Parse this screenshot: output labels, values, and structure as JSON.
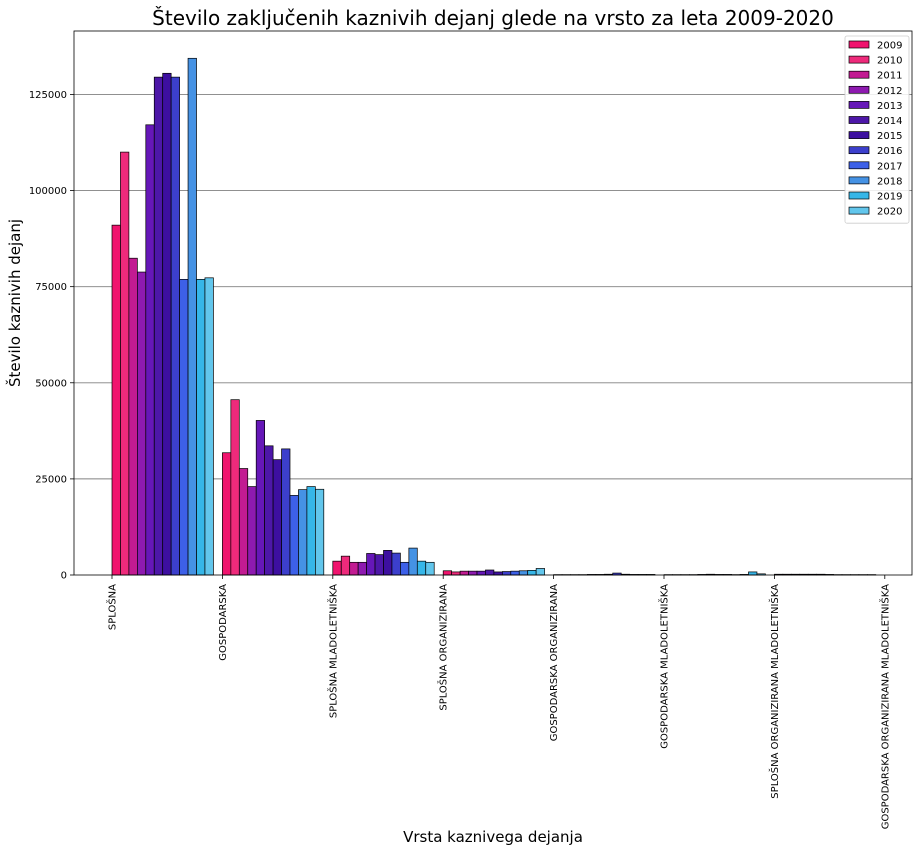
{
  "chart_data": {
    "type": "bar",
    "title": "Število zaključenih kaznivih dejanj glede na vrsto za leta 2009-2020",
    "xlabel": "Vrsta kaznivega dejanja",
    "ylabel": "Število kaznivih dejanj",
    "ylim": [
      0,
      141500
    ],
    "yticks": [
      0,
      25000,
      50000,
      75000,
      100000,
      125000
    ],
    "grid": "horizontal",
    "legend_position": "top-right",
    "categories": [
      "SPLOŠNA",
      "GOSPODARSKA",
      "SPLOŠNA MLADOLETNIŠKA",
      "SPLOŠNA ORGANIZIRANA",
      "GOSPODARSKA ORGANIZIRANA",
      "GOSPODARSKA MLADOLETNIŠKA",
      "SPLOŠNA ORGANIZIRANA MLADOLETNIŠKA",
      "GOSPODARSKA ORGANIZIRANA MLADOLETNIŠKA"
    ],
    "series": [
      {
        "name": "2009",
        "color": "#f0146e",
        "values": [
          91000,
          31800,
          3600,
          1100,
          100,
          100,
          200,
          0
        ]
      },
      {
        "name": "2010",
        "color": "#ee2a7b",
        "values": [
          110000,
          45600,
          4900,
          800,
          100,
          100,
          200,
          0
        ]
      },
      {
        "name": "2011",
        "color": "#c21b92",
        "values": [
          82400,
          27700,
          3300,
          1000,
          100,
          100,
          200,
          0
        ]
      },
      {
        "name": "2012",
        "color": "#8e1ab0",
        "values": [
          78800,
          23000,
          3300,
          1000,
          100,
          100,
          200,
          0
        ]
      },
      {
        "name": "2013",
        "color": "#6617b8",
        "values": [
          117100,
          40200,
          5600,
          1000,
          150,
          150,
          200,
          0
        ]
      },
      {
        "name": "2014",
        "color": "#4d17a8",
        "values": [
          129500,
          33600,
          5300,
          1300,
          150,
          200,
          200,
          0
        ]
      },
      {
        "name": "2015",
        "color": "#3d0fa0",
        "values": [
          130500,
          30000,
          6400,
          800,
          200,
          150,
          150,
          0
        ]
      },
      {
        "name": "2016",
        "color": "#3c3fcc",
        "values": [
          129500,
          32800,
          5700,
          900,
          500,
          150,
          100,
          300
        ]
      },
      {
        "name": "2017",
        "color": "#3d60e8",
        "values": [
          76900,
          20700,
          3300,
          1000,
          200,
          100,
          100,
          0
        ]
      },
      {
        "name": "2018",
        "color": "#4592e4",
        "values": [
          134400,
          22200,
          7000,
          1100,
          150,
          150,
          100,
          0
        ]
      },
      {
        "name": "2019",
        "color": "#36b6e8",
        "values": [
          76900,
          23000,
          3600,
          1200,
          150,
          800,
          100,
          0
        ]
      },
      {
        "name": "2020",
        "color": "#62c6ec",
        "values": [
          77300,
          22300,
          3300,
          1700,
          150,
          300,
          100,
          0
        ]
      }
    ]
  }
}
